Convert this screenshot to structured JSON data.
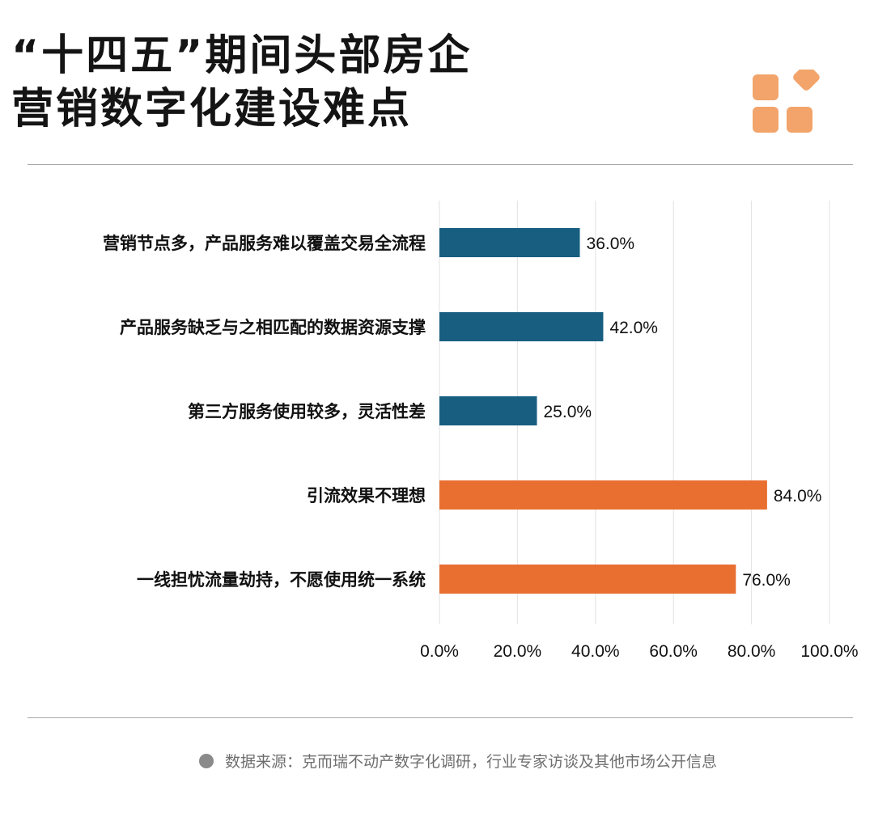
{
  "title": {
    "line1": "“十四五”期间头部房企",
    "line2": "营销数字化建设难点"
  },
  "logo_icon": "orange-blocks-icon",
  "colors": {
    "blue": "#175e80",
    "orange": "#e86f30",
    "logo": "#f2a46a",
    "grid": "#e2e2e2"
  },
  "chart_data": {
    "type": "bar",
    "orientation": "horizontal",
    "categories": [
      "营销节点多，产品服务难以覆盖交易全流程",
      "产品服务缺乏与之相匹配的数据资源支撑",
      "第三方服务使用较多，灵活性差",
      "引流效果不理想",
      "一线担忧流量劫持，不愿使用统一系统"
    ],
    "values": [
      36.0,
      42.0,
      25.0,
      84.0,
      76.0
    ],
    "value_labels": [
      "36.0%",
      "42.0%",
      "25.0%",
      "84.0%",
      "76.0%"
    ],
    "bar_colors": [
      "#175e80",
      "#175e80",
      "#175e80",
      "#e86f30",
      "#e86f30"
    ],
    "xlim": [
      0,
      100
    ],
    "xticks": [
      0,
      20,
      40,
      60,
      80,
      100
    ],
    "xtick_labels": [
      "0.0%",
      "20.0%",
      "40.0%",
      "60.0%",
      "80.0%",
      "100.0%"
    ],
    "grid": true
  },
  "footer": {
    "source": "数据来源：克而瑞不动产数字化调研，行业专家访谈及其他市场公开信息"
  }
}
